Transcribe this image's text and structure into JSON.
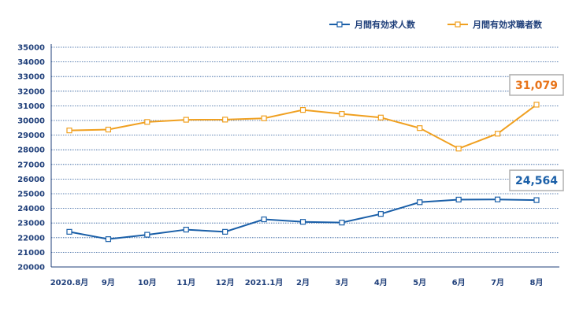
{
  "chart_data": {
    "type": "line",
    "categories": [
      "2020.8月",
      "9月",
      "10月",
      "11月",
      "12月",
      "2021.1月",
      "2月",
      "3月",
      "4月",
      "5月",
      "6月",
      "7月",
      "8月"
    ],
    "series": [
      {
        "name": "月間有効求人数",
        "color": "#1a5fa8",
        "values": [
          22400,
          21900,
          22200,
          22550,
          22400,
          23250,
          23080,
          23030,
          23620,
          24420,
          24600,
          24610,
          24564
        ]
      },
      {
        "name": "月間有効求職者数",
        "color": "#f0a020",
        "values": [
          29320,
          29380,
          29900,
          30050,
          30060,
          30150,
          30720,
          30450,
          30200,
          29480,
          28080,
          29100,
          31079
        ]
      }
    ],
    "ylim": [
      20000,
      35000
    ],
    "yticks": [
      20000,
      21000,
      22000,
      23000,
      24000,
      25000,
      26000,
      27000,
      28000,
      29000,
      30000,
      31000,
      32000,
      33000,
      34000,
      35000
    ],
    "grid": true,
    "legend": "top-right",
    "callouts": [
      {
        "series": 1,
        "text": "31,079",
        "color": "#e8741a"
      },
      {
        "series": 0,
        "text": "24,564",
        "color": "#1a5fa8"
      }
    ]
  }
}
